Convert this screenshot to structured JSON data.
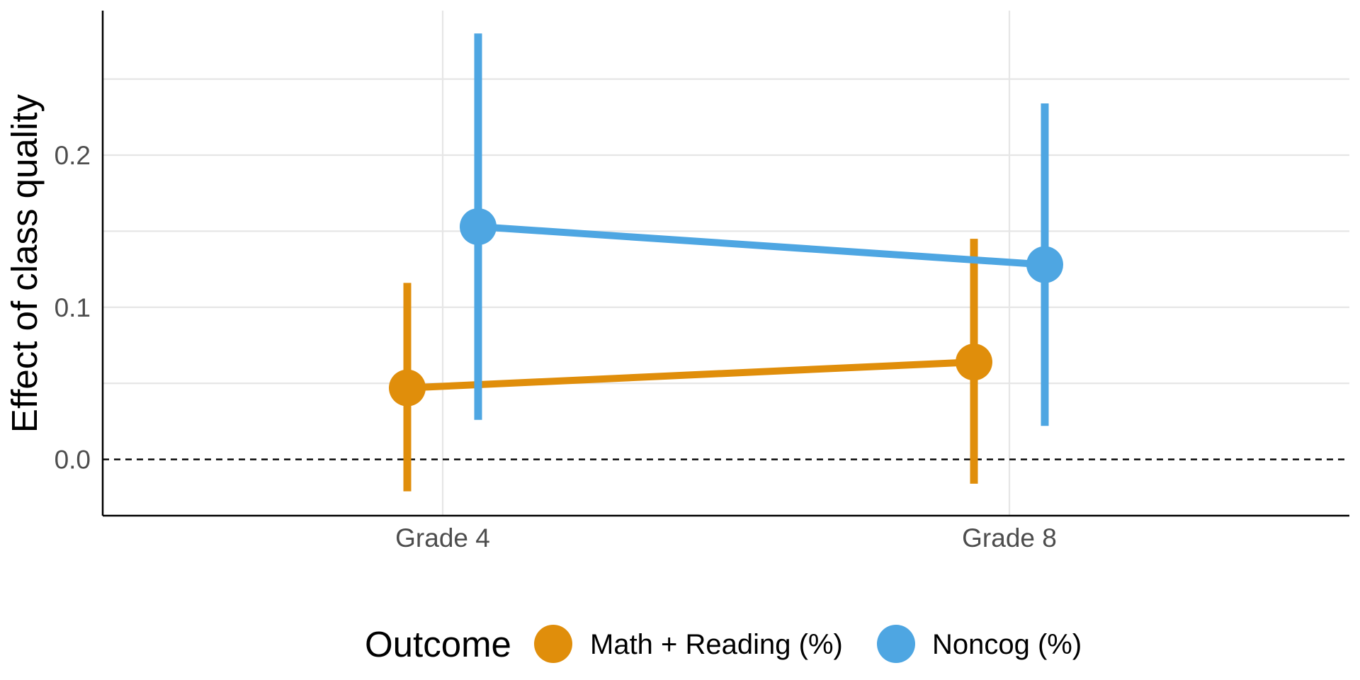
{
  "chart_data": {
    "type": "line",
    "title": "",
    "xlabel": "",
    "ylabel": "Effect of class quality",
    "categories": [
      "Grade 4",
      "Grade 8"
    ],
    "ylim": [
      -0.037,
      0.295
    ],
    "yticks": [
      "0.0",
      "0.1",
      "0.2"
    ],
    "reference_line": {
      "y": 0.0,
      "style": "dashed"
    },
    "grid": true,
    "legend": {
      "title": "Outcome",
      "position": "bottom"
    },
    "series": [
      {
        "name": "Math + Reading (%)",
        "color": "#E08E0B",
        "values": [
          0.047,
          0.064
        ],
        "ci_low": [
          -0.021,
          -0.016
        ],
        "ci_high": [
          0.116,
          0.145
        ]
      },
      {
        "name": "Noncog (%)",
        "color": "#4EA6E2",
        "values": [
          0.153,
          0.128
        ],
        "ci_low": [
          0.026,
          0.022
        ],
        "ci_high": [
          0.28,
          0.234
        ]
      }
    ]
  }
}
